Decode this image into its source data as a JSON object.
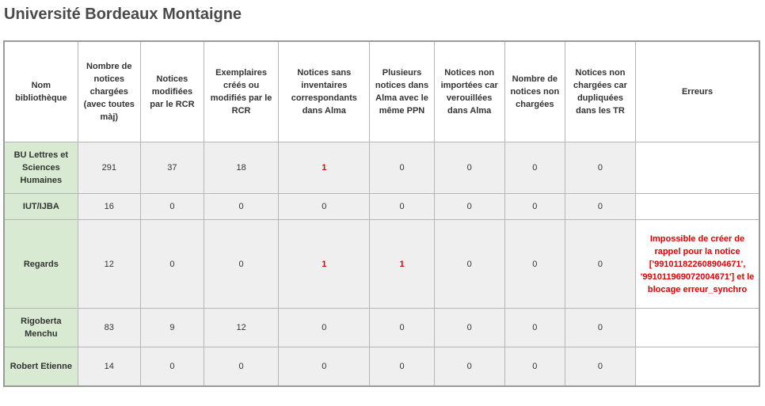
{
  "page": {
    "title": "Université Bordeaux Montaigne"
  },
  "colors": {
    "library_cell_bg": "#d9ead3",
    "row_bg": "#efefef",
    "error_text": "#e00000",
    "header_text": "#333333"
  },
  "table": {
    "headers": {
      "library": "Nom bibliothèque",
      "loaded": "Nombre de notices chargées (avec toutes màj)",
      "modified_rcr": "Notices modifiées par le RCR",
      "items_rcr": "Exemplaires créés ou modifiés par le RCR",
      "no_inventory": "Notices sans inventaires correspondants dans Alma",
      "multiple_ppn": "Plusieurs notices dans Alma avec le même PPN",
      "locked": "Notices non importées car verouillées dans Alma",
      "not_loaded": "Nombre de notices non chargées",
      "duplicated": "Notices non chargées car dupliquées dans les TR",
      "errors": "Erreurs"
    },
    "rows": [
      {
        "library": "BU Lettres et Sciences Humaines",
        "loaded": "291",
        "modified_rcr": "37",
        "items_rcr": "18",
        "no_inventory": "1",
        "multiple_ppn": "0",
        "locked": "0",
        "not_loaded": "0",
        "duplicated": "0",
        "errors": ""
      },
      {
        "library": "IUT/IJBA",
        "loaded": "16",
        "modified_rcr": "0",
        "items_rcr": "0",
        "no_inventory": "0",
        "multiple_ppn": "0",
        "locked": "0",
        "not_loaded": "0",
        "duplicated": "0",
        "errors": ""
      },
      {
        "library": "Regards",
        "loaded": "12",
        "modified_rcr": "0",
        "items_rcr": "0",
        "no_inventory": "1",
        "multiple_ppn": "1",
        "locked": "0",
        "not_loaded": "0",
        "duplicated": "0",
        "errors": "Impossible de créer de rappel pour la notice ['991011822608904671', '991011969072004671'] et le blocage erreur_synchro"
      },
      {
        "library": "Rigoberta Menchu",
        "loaded": "83",
        "modified_rcr": "9",
        "items_rcr": "12",
        "no_inventory": "0",
        "multiple_ppn": "0",
        "locked": "0",
        "not_loaded": "0",
        "duplicated": "0",
        "errors": ""
      },
      {
        "library": "Robert Etienne",
        "loaded": "14",
        "modified_rcr": "0",
        "items_rcr": "0",
        "no_inventory": "0",
        "multiple_ppn": "0",
        "locked": "0",
        "not_loaded": "0",
        "duplicated": "0",
        "errors": ""
      }
    ]
  }
}
